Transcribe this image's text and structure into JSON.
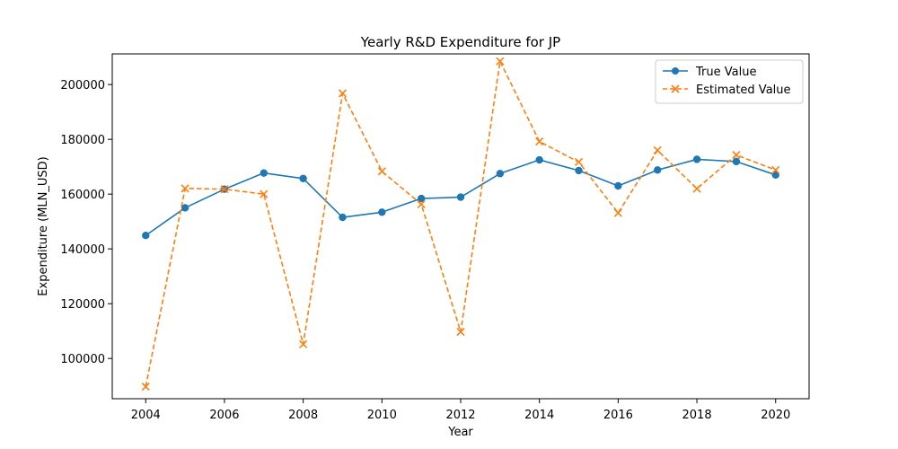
{
  "chart_data": {
    "type": "line",
    "title": "Yearly R&D Expenditure for JP",
    "xlabel": "Year",
    "ylabel": "Expenditure (MLN_USD)",
    "x": [
      2004,
      2005,
      2006,
      2007,
      2008,
      2009,
      2010,
      2011,
      2012,
      2013,
      2014,
      2015,
      2016,
      2017,
      2018,
      2019,
      2020
    ],
    "xlim": [
      2003.15,
      2020.85
    ],
    "ylim": [
      85300,
      211200
    ],
    "xticks": [
      2004,
      2006,
      2008,
      2010,
      2012,
      2014,
      2016,
      2018,
      2020
    ],
    "xtick_labels": [
      "2004",
      "2006",
      "2008",
      "2010",
      "2012",
      "2014",
      "2016",
      "2018",
      "2020"
    ],
    "yticks": [
      100000,
      120000,
      140000,
      160000,
      180000,
      200000
    ],
    "ytick_labels": [
      "100000",
      "120000",
      "140000",
      "160000",
      "180000",
      "200000"
    ],
    "grid": false,
    "legend_position": "top-right",
    "series": [
      {
        "name": "True Value",
        "color": "#1f77b4",
        "line_style": "solid",
        "marker": "circle",
        "values": [
          144900,
          155000,
          161800,
          167700,
          165700,
          151500,
          153400,
          158400,
          158900,
          167500,
          172500,
          168600,
          163000,
          168800,
          172700,
          171900,
          167000
        ]
      },
      {
        "name": "Estimated Value",
        "color": "#ff7f0e",
        "line_style": "dashed",
        "marker": "x",
        "values": [
          89700,
          162100,
          161800,
          160000,
          105200,
          196800,
          168300,
          156300,
          109700,
          208500,
          179200,
          171700,
          153100,
          176000,
          162000,
          174300,
          168800
        ]
      }
    ]
  }
}
